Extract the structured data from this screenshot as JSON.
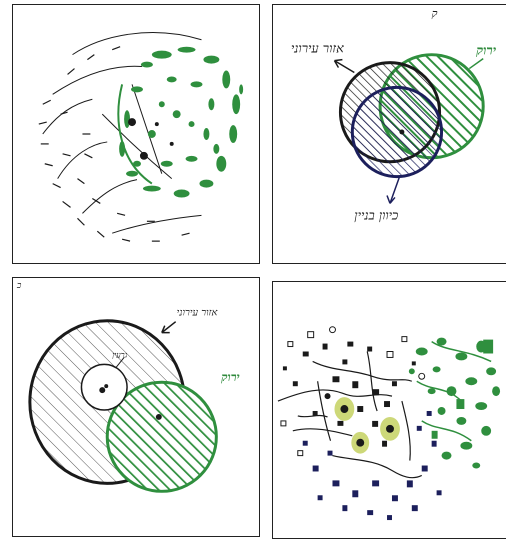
{
  "colors": {
    "green": "#2f8f3e",
    "dark_green": "#1f6b2c",
    "navy": "#1c1f5c",
    "ink": "#1a1a1a",
    "highlight": "#c8d46a"
  },
  "panels": [
    {
      "id": "p1",
      "name": "dispersed-pattern-sketch",
      "labels": []
    },
    {
      "id": "p2",
      "name": "overlapping-circles-sketch",
      "labels": {
        "top_left": "אזור עירוני",
        "top_right": "ירוק",
        "bottom": "כיוון בניין",
        "top_mark": "ק"
      }
    },
    {
      "id": "p3",
      "name": "nested-circles-sketch",
      "labels": {
        "top_right": "אזור עירוני",
        "inner": "גרעין",
        "right": "ירוק",
        "corner": "כ"
      }
    },
    {
      "id": "p4",
      "name": "dense-town-map-sketch",
      "labels": []
    }
  ]
}
